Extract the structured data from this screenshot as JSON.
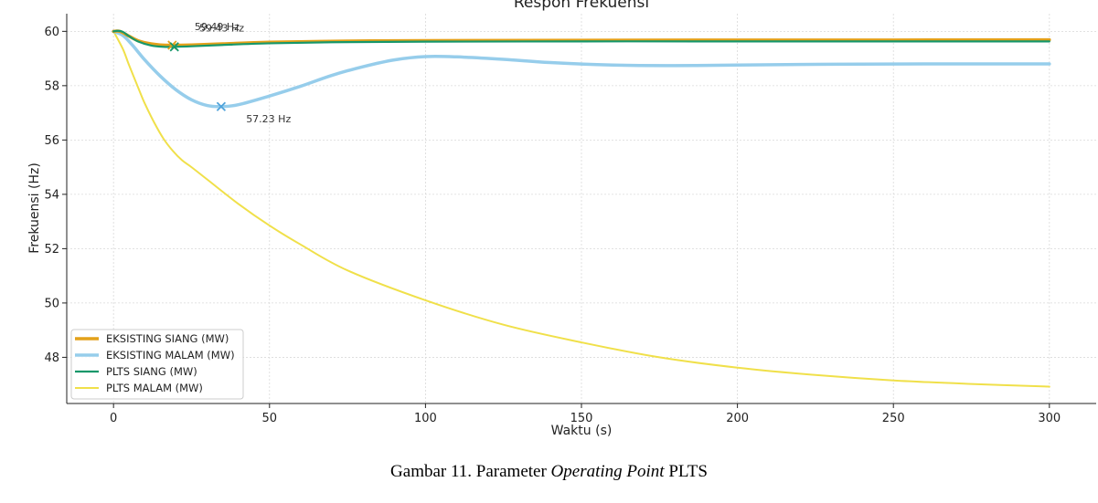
{
  "caption": {
    "prefix": "Gambar 11. Parameter ",
    "italic": "Operating Point",
    "suffix": " PLTS"
  },
  "chart_data": {
    "type": "line",
    "title": "Respon Frekuensi",
    "xlabel": "Waktu (s)",
    "ylabel": "Frekuensi (Hz)",
    "xlim": [
      -15,
      315
    ],
    "ylim": [
      46.3,
      60.65
    ],
    "xticks": [
      0,
      50,
      100,
      150,
      200,
      250,
      300
    ],
    "yticks": [
      48,
      50,
      52,
      54,
      56,
      58,
      60
    ],
    "grid": true,
    "legend_position": "bottom-left",
    "series": [
      {
        "name": "EKSISTING SIANG (MW)",
        "color": "#E3A11A",
        "width": 3.5,
        "x": [
          0,
          2,
          5,
          8,
          12,
          15,
          18.8,
          25,
          35,
          50,
          75,
          100,
          150,
          200,
          250,
          300
        ],
        "y": [
          60.0,
          60.0,
          59.82,
          59.65,
          59.54,
          59.5,
          59.49,
          59.5,
          59.54,
          59.6,
          59.64,
          59.66,
          59.67,
          59.68,
          59.68,
          59.69
        ]
      },
      {
        "name": "EKSISTING MALAM (MW)",
        "color": "#96CDEB",
        "width": 3.5,
        "x": [
          0,
          3,
          6,
          10,
          15,
          20,
          25,
          30,
          34.5,
          40,
          50,
          60,
          70,
          80,
          90,
          100,
          110,
          125,
          140,
          160,
          180,
          200,
          230,
          260,
          300
        ],
        "y": [
          60.0,
          59.85,
          59.5,
          58.95,
          58.35,
          57.85,
          57.48,
          57.27,
          57.23,
          57.3,
          57.62,
          57.98,
          58.38,
          58.7,
          58.95,
          59.07,
          59.06,
          58.97,
          58.85,
          58.76,
          58.74,
          58.76,
          58.79,
          58.8,
          58.8
        ]
      },
      {
        "name": "PLTS SIANG (MW)",
        "color": "#16976A",
        "width": 2.2,
        "x": [
          0,
          1.5,
          3,
          5,
          8,
          12,
          16,
          19.5,
          25,
          35,
          50,
          70,
          100,
          150,
          200,
          300
        ],
        "y": [
          60.0,
          60.02,
          59.98,
          59.82,
          59.62,
          59.48,
          59.43,
          59.43,
          59.45,
          59.5,
          59.56,
          59.6,
          59.62,
          59.63,
          59.63,
          59.63
        ]
      },
      {
        "name": "PLTS MALAM (MW)",
        "color": "#F0E04A",
        "width": 2,
        "x": [
          0,
          3,
          5,
          8,
          10,
          13,
          16,
          19,
          22,
          25,
          30,
          40,
          50,
          60,
          75,
          100,
          125,
          150,
          175,
          200,
          225,
          250,
          275,
          300
        ],
        "y": [
          60.0,
          59.35,
          58.75,
          57.9,
          57.35,
          56.65,
          56.05,
          55.6,
          55.25,
          55.0,
          54.55,
          53.65,
          52.85,
          52.15,
          51.2,
          50.1,
          49.2,
          48.55,
          48.0,
          47.62,
          47.35,
          47.15,
          47.02,
          46.92
        ]
      }
    ],
    "annotations": [
      {
        "x": 18.8,
        "y": 59.49,
        "text": "59.49 Hz",
        "color": "#E3A11A",
        "tx": 26,
        "ty": 60.05
      },
      {
        "x": 19.5,
        "y": 59.43,
        "text": "59.43 Hz",
        "color": "#16976A",
        "tx": 27.5,
        "ty": 60.0
      },
      {
        "x": 34.5,
        "y": 57.23,
        "text": "57.23 Hz",
        "color": "#4FA3DB",
        "tx": 42.5,
        "ty": 56.65
      }
    ]
  }
}
